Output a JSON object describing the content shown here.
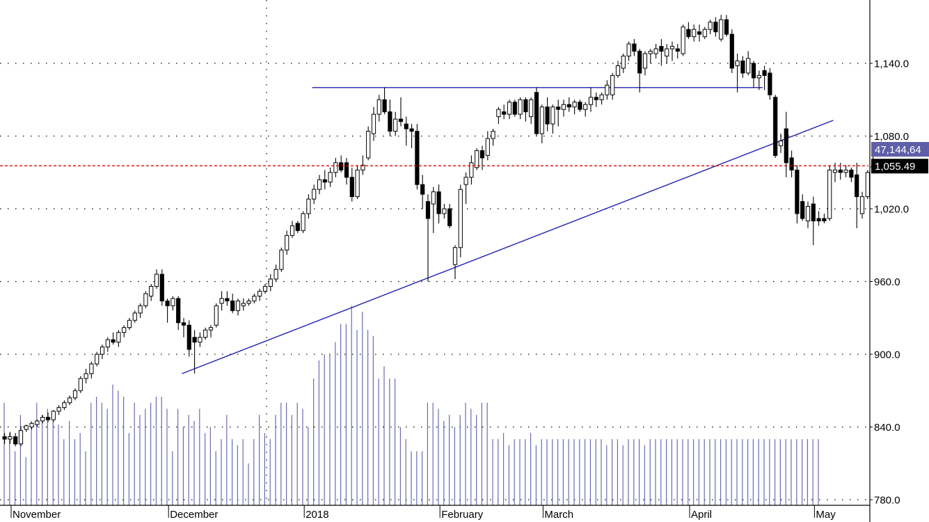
{
  "chart_data": {
    "type": "candlestick",
    "y_axis": {
      "ticks": [
        "1,140.0",
        "1,080.0",
        "1,020.0",
        "960.0",
        "900.0",
        "840.0",
        "780.0"
      ],
      "tick_values": [
        1140,
        1080,
        1020,
        960,
        900,
        840,
        780
      ],
      "range": [
        772,
        1186
      ],
      "position": "right"
    },
    "x_axis": {
      "labels": [
        "November",
        "December",
        "2018",
        "February",
        "March",
        "April",
        "May"
      ],
      "label_bar_index": [
        0,
        29,
        54,
        79,
        98,
        125,
        148
      ]
    },
    "grid": true,
    "price_level": {
      "value": 1055.49,
      "label": "1,055.49",
      "color": "#e00000"
    },
    "volume_readout": {
      "label": "47,144,64",
      "color": "#5f5fa8"
    },
    "candles_ohlc": [
      [
        832,
        835,
        826,
        830
      ],
      [
        830,
        836,
        826,
        832
      ],
      [
        832,
        835,
        824,
        826
      ],
      [
        826,
        841,
        824,
        837
      ],
      [
        838,
        842,
        836,
        841
      ],
      [
        840,
        844,
        838,
        843
      ],
      [
        842,
        846,
        840,
        845
      ],
      [
        845,
        850,
        843,
        848
      ],
      [
        848,
        852,
        844,
        846
      ],
      [
        846,
        854,
        844,
        853
      ],
      [
        853,
        858,
        850,
        856
      ],
      [
        856,
        862,
        854,
        860
      ],
      [
        860,
        866,
        858,
        864
      ],
      [
        864,
        872,
        862,
        870
      ],
      [
        870,
        882,
        868,
        880
      ],
      [
        880,
        888,
        876,
        884
      ],
      [
        884,
        894,
        880,
        892
      ],
      [
        892,
        902,
        890,
        900
      ],
      [
        900,
        908,
        896,
        906
      ],
      [
        906,
        914,
        902,
        912
      ],
      [
        912,
        918,
        908,
        910
      ],
      [
        910,
        920,
        906,
        918
      ],
      [
        918,
        924,
        914,
        922
      ],
      [
        922,
        930,
        920,
        928
      ],
      [
        928,
        936,
        926,
        934
      ],
      [
        934,
        942,
        930,
        940
      ],
      [
        940,
        952,
        938,
        950
      ],
      [
        948,
        958,
        944,
        956
      ],
      [
        956,
        970,
        954,
        966
      ],
      [
        966,
        970,
        940,
        944
      ],
      [
        944,
        946,
        926,
        940
      ],
      [
        940,
        948,
        936,
        946
      ],
      [
        946,
        948,
        920,
        926
      ],
      [
        926,
        930,
        914,
        924
      ],
      [
        924,
        928,
        898,
        904
      ],
      [
        914,
        920,
        884,
        910
      ],
      [
        910,
        918,
        906,
        914
      ],
      [
        914,
        922,
        912,
        920
      ],
      [
        920,
        924,
        914,
        922
      ],
      [
        924,
        942,
        922,
        940
      ],
      [
        942,
        952,
        936,
        946
      ],
      [
        946,
        952,
        940,
        944
      ],
      [
        944,
        950,
        934,
        936
      ],
      [
        936,
        946,
        932,
        944
      ],
      [
        940,
        946,
        936,
        942
      ],
      [
        942,
        946,
        940,
        944
      ],
      [
        944,
        950,
        942,
        948
      ],
      [
        948,
        954,
        944,
        952
      ],
      [
        952,
        958,
        950,
        956
      ],
      [
        956,
        966,
        952,
        962
      ],
      [
        962,
        974,
        960,
        970
      ],
      [
        970,
        988,
        968,
        986
      ],
      [
        986,
        1002,
        982,
        998
      ],
      [
        998,
        1010,
        996,
        1006
      ],
      [
        1008,
        1010,
        1000,
        1002
      ],
      [
        1002,
        1018,
        1000,
        1016
      ],
      [
        1016,
        1032,
        1012,
        1028
      ],
      [
        1028,
        1040,
        1024,
        1036
      ],
      [
        1036,
        1048,
        1032,
        1044
      ],
      [
        1044,
        1052,
        1036,
        1042
      ],
      [
        1042,
        1054,
        1038,
        1050
      ],
      [
        1050,
        1062,
        1046,
        1058
      ],
      [
        1058,
        1064,
        1050,
        1052
      ],
      [
        1058,
        1062,
        1040,
        1046
      ],
      [
        1046,
        1054,
        1026,
        1030
      ],
      [
        1030,
        1056,
        1028,
        1052
      ],
      [
        1052,
        1064,
        1048,
        1056
      ],
      [
        1062,
        1088,
        1060,
        1084
      ],
      [
        1082,
        1104,
        1076,
        1098
      ],
      [
        1098,
        1114,
        1092,
        1110
      ],
      [
        1110,
        1120,
        1098,
        1100
      ],
      [
        1100,
        1110,
        1080,
        1084
      ],
      [
        1084,
        1100,
        1080,
        1094
      ],
      [
        1094,
        1112,
        1088,
        1092
      ],
      [
        1090,
        1096,
        1072,
        1086
      ],
      [
        1086,
        1090,
        1070,
        1084
      ],
      [
        1084,
        1090,
        1036,
        1040
      ],
      [
        1040,
        1048,
        1020,
        1032
      ],
      [
        1026,
        1032,
        960,
        1012
      ],
      [
        1024,
        1038,
        1000,
        1034
      ],
      [
        1034,
        1040,
        1008,
        1016
      ],
      [
        1016,
        1024,
        1012,
        1020
      ],
      [
        1020,
        1024,
        1004,
        1006
      ],
      [
        974,
        990,
        962,
        988
      ],
      [
        988,
        1040,
        980,
        1036
      ],
      [
        1040,
        1050,
        1024,
        1046
      ],
      [
        1046,
        1064,
        1040,
        1058
      ],
      [
        1054,
        1070,
        1052,
        1068
      ],
      [
        1068,
        1072,
        1052,
        1062
      ],
      [
        1064,
        1084,
        1060,
        1078
      ],
      [
        1078,
        1086,
        1072,
        1084
      ],
      [
        1096,
        1104,
        1090,
        1102
      ],
      [
        1100,
        1106,
        1094,
        1098
      ],
      [
        1098,
        1110,
        1094,
        1108
      ],
      [
        1108,
        1110,
        1096,
        1098
      ],
      [
        1098,
        1112,
        1094,
        1110
      ],
      [
        1110,
        1112,
        1092,
        1100
      ],
      [
        1096,
        1112,
        1090,
        1110
      ],
      [
        1116,
        1120,
        1080,
        1082
      ],
      [
        1082,
        1106,
        1074,
        1104
      ],
      [
        1104,
        1112,
        1084,
        1090
      ],
      [
        1090,
        1106,
        1082,
        1104
      ],
      [
        1104,
        1110,
        1088,
        1102
      ],
      [
        1102,
        1110,
        1096,
        1106
      ],
      [
        1106,
        1112,
        1100,
        1104
      ],
      [
        1104,
        1110,
        1098,
        1108
      ],
      [
        1108,
        1110,
        1100,
        1102
      ],
      [
        1102,
        1108,
        1096,
        1106
      ],
      [
        1106,
        1120,
        1100,
        1112
      ],
      [
        1112,
        1116,
        1104,
        1110
      ],
      [
        1110,
        1116,
        1106,
        1114
      ],
      [
        1114,
        1126,
        1110,
        1122
      ],
      [
        1114,
        1132,
        1110,
        1130
      ],
      [
        1130,
        1142,
        1128,
        1138
      ],
      [
        1136,
        1148,
        1132,
        1146
      ],
      [
        1146,
        1158,
        1142,
        1156
      ],
      [
        1156,
        1160,
        1146,
        1150
      ],
      [
        1150,
        1152,
        1116,
        1132
      ],
      [
        1136,
        1150,
        1130,
        1148
      ],
      [
        1148,
        1152,
        1140,
        1150
      ],
      [
        1148,
        1156,
        1144,
        1152
      ],
      [
        1154,
        1160,
        1138,
        1150
      ],
      [
        1146,
        1156,
        1140,
        1152
      ],
      [
        1152,
        1158,
        1142,
        1154
      ],
      [
        1152,
        1156,
        1144,
        1150
      ],
      [
        1148,
        1172,
        1146,
        1170
      ],
      [
        1168,
        1174,
        1160,
        1162
      ],
      [
        1162,
        1172,
        1158,
        1168
      ],
      [
        1166,
        1172,
        1158,
        1164
      ],
      [
        1162,
        1170,
        1160,
        1168
      ],
      [
        1168,
        1176,
        1164,
        1174
      ],
      [
        1174,
        1178,
        1162,
        1166
      ],
      [
        1160,
        1180,
        1158,
        1176
      ],
      [
        1176,
        1180,
        1162,
        1164
      ],
      [
        1164,
        1168,
        1132,
        1136
      ],
      [
        1138,
        1148,
        1116,
        1142
      ],
      [
        1142,
        1146,
        1128,
        1132
      ],
      [
        1132,
        1150,
        1130,
        1144
      ],
      [
        1140,
        1142,
        1120,
        1128
      ],
      [
        1128,
        1134,
        1118,
        1130
      ],
      [
        1134,
        1138,
        1118,
        1130
      ],
      [
        1132,
        1136,
        1110,
        1114
      ],
      [
        1112,
        1114,
        1062,
        1064
      ],
      [
        1072,
        1082,
        1066,
        1076
      ],
      [
        1086,
        1100,
        1046,
        1058
      ],
      [
        1062,
        1068,
        1046,
        1052
      ],
      [
        1052,
        1056,
        1008,
        1016
      ],
      [
        1026,
        1032,
        1010,
        1012
      ],
      [
        1010,
        1026,
        1004,
        1022
      ],
      [
        1024,
        1030,
        990,
        1010
      ],
      [
        1012,
        1018,
        1006,
        1010
      ],
      [
        1012,
        1016,
        1008,
        1010
      ],
      [
        1012,
        1056,
        1010,
        1052
      ],
      [
        1050,
        1058,
        1042,
        1052
      ],
      [
        1052,
        1058,
        1044,
        1050
      ],
      [
        1050,
        1056,
        1046,
        1052
      ],
      [
        1052,
        1054,
        1042,
        1046
      ],
      [
        1048,
        1058,
        1004,
        1030
      ],
      [
        1016,
        1034,
        1012,
        1030
      ],
      [
        1030,
        1052,
        1028,
        1050
      ],
      [
        1055,
        1068,
        1053,
        1055
      ]
    ],
    "volume": [
      860,
      835,
      820,
      850,
      815,
      845,
      860,
      850,
      855,
      845,
      842,
      830,
      845,
      830,
      835,
      820,
      860,
      865,
      860,
      855,
      875,
      870,
      865,
      835,
      860,
      850,
      855,
      860,
      865,
      865,
      855,
      820,
      855,
      840,
      850,
      845,
      855,
      835,
      840,
      820,
      830,
      850,
      830,
      825,
      830,
      810,
      830,
      850,
      835,
      830,
      850,
      860,
      860,
      850,
      860,
      855,
      840,
      880,
      895,
      900,
      900,
      910,
      925,
      925,
      940,
      920,
      935,
      920,
      915,
      880,
      890,
      880,
      880,
      840,
      830,
      820,
      820,
      820,
      860,
      860,
      855,
      845,
      850,
      840,
      850,
      860,
      855,
      850,
      860,
      860,
      830,
      830,
      835,
      825,
      830,
      830,
      830,
      835,
      825,
      830,
      830,
      830,
      830,
      830,
      830,
      830,
      830,
      830,
      830,
      830,
      830,
      825,
      830,
      830,
      825,
      830,
      830,
      830,
      825,
      830,
      830,
      830,
      830,
      830,
      830,
      830,
      830,
      830,
      830,
      830,
      830,
      830,
      830,
      830,
      830,
      830,
      830,
      830,
      830,
      830,
      830,
      830,
      830,
      830,
      830,
      830,
      830,
      830,
      830,
      830,
      830
    ],
    "trendlines": [
      {
        "name": "resistance",
        "from": [
          57,
          1120
        ],
        "to": [
          140,
          1120
        ]
      },
      {
        "name": "support",
        "from": [
          33,
          884
        ],
        "to": [
          153,
          1093
        ]
      }
    ]
  }
}
